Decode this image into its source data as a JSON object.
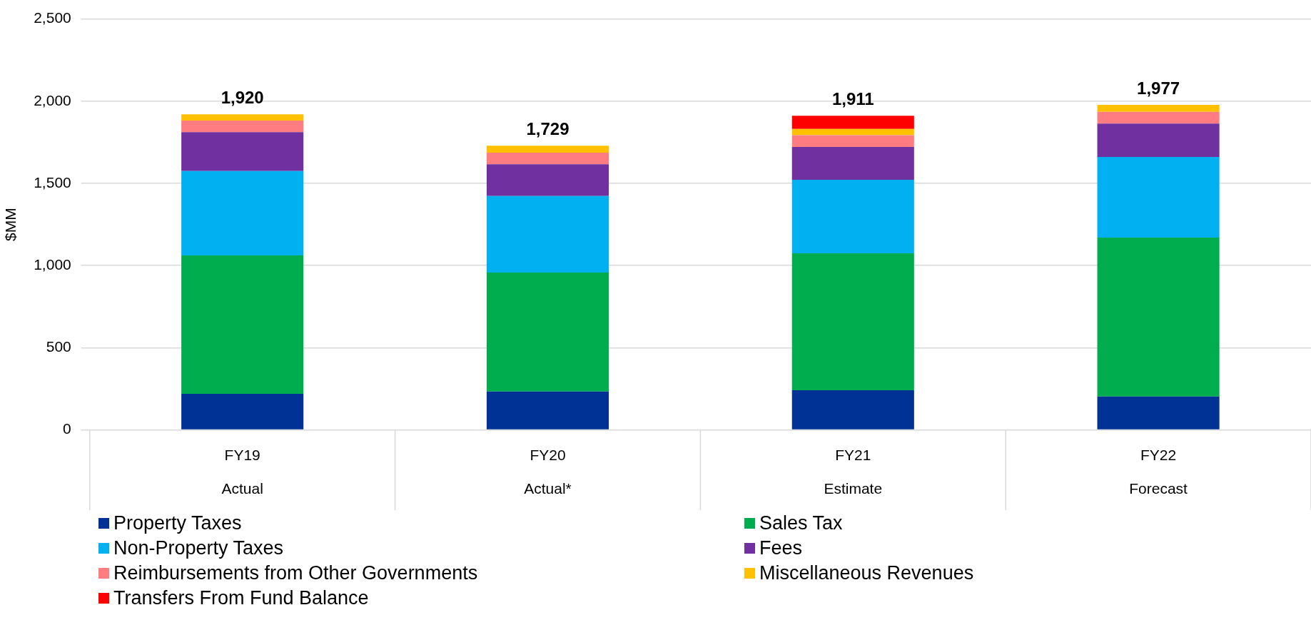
{
  "chart_data": {
    "type": "bar",
    "stacked": true,
    "ylabel": "$MM",
    "categories": [
      "FY19\nActual",
      "FY20\nActual*",
      "FY21\nEstimate",
      "FY22\nForecast"
    ],
    "series": [
      {
        "name": "Property Taxes",
        "color": "#003296",
        "values": [
          220,
          234,
          241,
          203
        ]
      },
      {
        "name": "Sales Tax",
        "color": "#00ad4e",
        "values": [
          842,
          723,
          834,
          967
        ]
      },
      {
        "name": "Non-Property Taxes",
        "color": "#00b0f0",
        "values": [
          513,
          466,
          447,
          491
        ]
      },
      {
        "name": "Fees",
        "color": "#7030a0",
        "values": [
          236,
          193,
          199,
          202
        ]
      },
      {
        "name": "Reimbursements from Other Governments",
        "color": "#ff7c80",
        "values": [
          71,
          71,
          72,
          72
        ]
      },
      {
        "name": "Miscellaneous Revenues",
        "color": "#ffc000",
        "values": [
          38,
          42,
          38,
          42
        ]
      },
      {
        "name": "Transfers From Fund Balance",
        "color": "#ff0000",
        "values": [
          null,
          null,
          80,
          null
        ]
      }
    ],
    "totals": [
      "1,920",
      "1,729",
      "1,911",
      "1,977"
    ],
    "ylim": [
      0,
      2500
    ],
    "yticks": [
      0,
      500,
      {
        "value": 1000,
        "label": "1,000"
      },
      {
        "value": 1500,
        "label": "1,500"
      },
      {
        "value": 2000,
        "label": "2,000"
      },
      {
        "value": 2500,
        "label": "2,500"
      }
    ],
    "grid": "y",
    "legend": "bottom"
  }
}
